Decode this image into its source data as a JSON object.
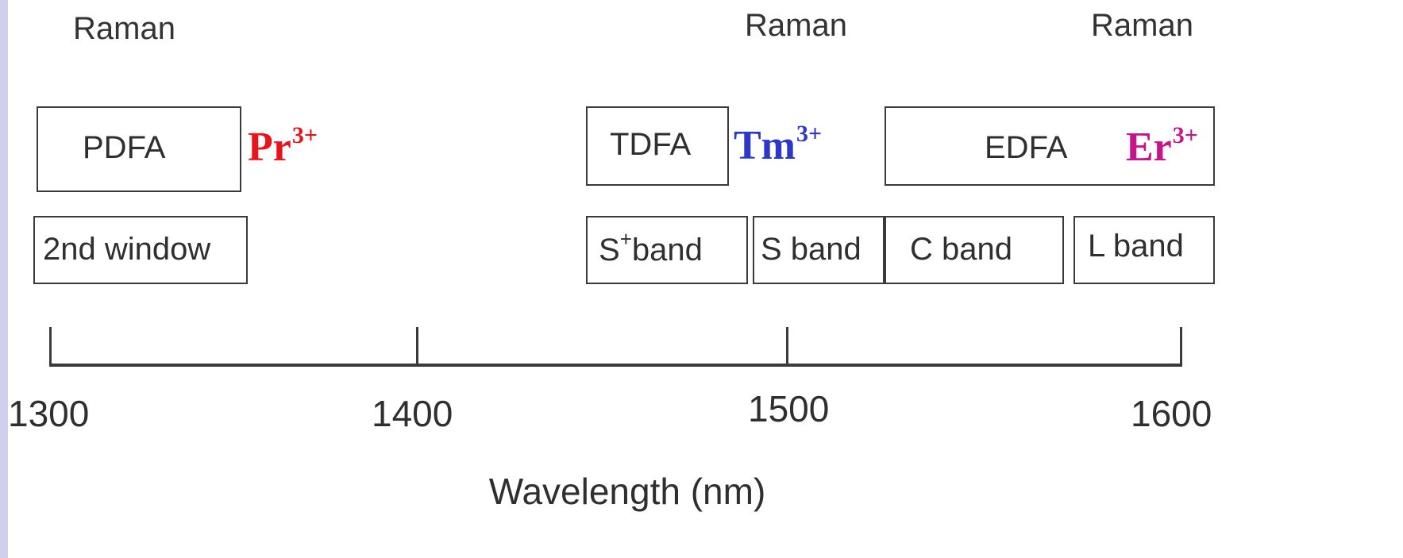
{
  "raman_labels": [
    "Raman",
    "Raman",
    "Raman"
  ],
  "amplifiers": [
    {
      "name": "PDFA",
      "ion": "Pr",
      "charge": "3+",
      "color": "#e8141c"
    },
    {
      "name": "TDFA",
      "ion": "Tm",
      "charge": "3+",
      "color": "#2e38c8"
    },
    {
      "name": "EDFA",
      "ion": "Er",
      "charge": "3+",
      "color": "#c8148c"
    }
  ],
  "bands": [
    {
      "label": "2nd window"
    },
    {
      "prefix": "S",
      "sup": "+",
      "label": "band"
    },
    {
      "label": "S band"
    },
    {
      "label": "C band"
    },
    {
      "label": "L band"
    }
  ],
  "axis": {
    "ticks": [
      "1300",
      "1400",
      "1500",
      "1600"
    ],
    "title": "Wavelength (nm)"
  }
}
